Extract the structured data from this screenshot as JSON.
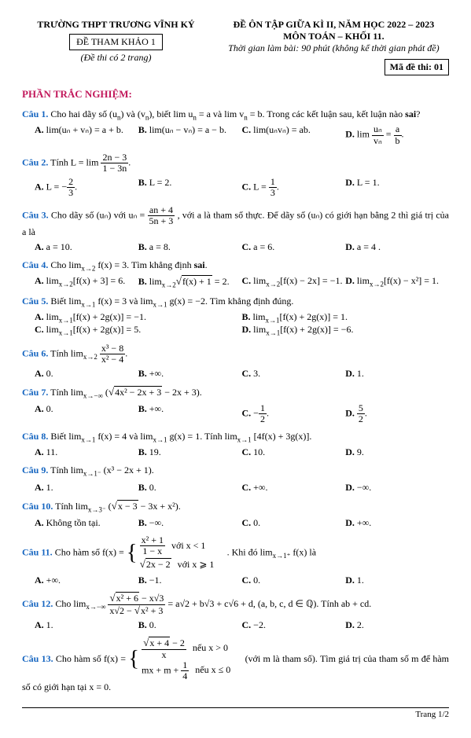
{
  "header": {
    "school": "TRƯỜNG THPT TRƯƠNG VĨNH KÝ",
    "ref_box": "ĐỀ THAM KHẢO 1",
    "pages_note": "(Đề thi có 2 trang)",
    "title": "ĐỀ ÔN TẬP GIỮA KÌ II, NĂM HỌC 2022 – 2023",
    "subject": "MÔN TOÁN – KHỐI 11.",
    "time": "Thời gian làm bài: 90 phút (không kể thời gian phát đề)",
    "exam_code": "Mã đề thi: 01"
  },
  "section_title": "PHẦN TRẮC NGHIỆM:",
  "footer": "Trang 1/2",
  "questions": {
    "q1": {
      "num": "Câu 1.",
      "text_a": "Cho hai dãy số (u",
      "text_b": ") và (v",
      "text_c": "), biết lim u",
      "text_d": " = a và lim v",
      "text_e": " = b. Trong các kết luận sau, kết luận nào ",
      "sai": "sai",
      "qmark": "?",
      "optA": "lim(uₙ + vₙ) = a + b.",
      "optB": "lim(uₙ − vₙ) = a − b.",
      "optC": "lim(uₙvₙ) = ab.",
      "optD_pre": "lim ",
      "optD_num": "uₙ",
      "optD_den": "vₙ",
      "optD_post_num": "a",
      "optD_post_den": "b",
      "dot": "."
    },
    "q2": {
      "num": "Câu 2.",
      "text": "Tính L = lim ",
      "frac_n": "2n − 3",
      "frac_d": "1 − 3n",
      "optA_pre": "L = −",
      "optA_n": "2",
      "optA_d": "3",
      "optB": "L = 2.",
      "optC_pre": "L = ",
      "optC_n": "1",
      "optC_d": "3",
      "optD": "L = 1."
    },
    "q3": {
      "num": "Câu 3.",
      "text_a": "Cho dãy số (uₙ) với uₙ = ",
      "frac_n": "an + 4",
      "frac_d": "5n + 3",
      "text_b": ", với a là tham số thực. Để dãy số (uₙ) có giới hạn bằng 2 thì giá trị của a là",
      "optA": "a = 10.",
      "optB": "a = 8.",
      "optC": "a = 6.",
      "optD": "a = 4 ."
    },
    "q4": {
      "num": "Câu 4.",
      "text_a": "Cho ",
      "lim_sub": "x→2",
      "text_b": " f(x) = 3. Tìm khẳng định ",
      "sai": "sai",
      "optA_lim": "x→2",
      "optA": "[f(x) + 3] = 6.",
      "optB_lim": "x→2",
      "optB_rad": "f(x) + 1",
      "optB_post": " = 2.",
      "optC_lim": "x→2",
      "optC": "[f(x) − 2x] = −1.",
      "optD_lim": "x→2",
      "optD": "[f(x) − x²] = 1."
    },
    "q5": {
      "num": "Câu 5.",
      "text": "Biết lim f(x) = 3 và lim g(x) = −2. Tìm khẳng định đúng.",
      "lim_sub": "x→1",
      "optA": "[f(x) + 2g(x)] = −1.",
      "optB": "[f(x) + 2g(x)] = 1.",
      "optC": "[f(x) + 2g(x)] = 5.",
      "optD": "[f(x) + 2g(x)] = −6."
    },
    "q6": {
      "num": "Câu 6.",
      "text": "Tính ",
      "lim_sub": "x→2",
      "frac_n": "x³ − 8",
      "frac_d": "x² − 4",
      "optA": "0.",
      "optB": "+∞.",
      "optC": "3.",
      "optD": "1."
    },
    "q7": {
      "num": "Câu 7.",
      "text": "Tính ",
      "lim_sub": "x→−∞",
      "rad": "4x² − 2x + 3",
      "post": " − 2x + 3",
      "optA": "0.",
      "optB": "+∞.",
      "optC_pre": "−",
      "optC_n": "1",
      "optC_d": "2",
      "optD_n": "5",
      "optD_d": "2"
    },
    "q8": {
      "num": "Câu 8.",
      "text_a": "Biết lim f(x) = 4 và lim g(x) = 1. Tính lim [4f(x) + 3g(x)].",
      "lim_sub": "x→1",
      "optA": "11.",
      "optB": "19.",
      "optC": "10.",
      "optD": "9."
    },
    "q9": {
      "num": "Câu 9.",
      "text": "Tính ",
      "lim_sub": "x→1⁻",
      "expr": "(x³ − 2x + 1).",
      "optA": "1.",
      "optB": "0.",
      "optC": "+∞.",
      "optD": "−∞."
    },
    "q10": {
      "num": "Câu 10.",
      "text": "Tính ",
      "lim_sub": "x→3⁻",
      "rad": "x − 3",
      "post": " − 3x + x²).",
      "optA": "Không tồn tại.",
      "optB": "−∞.",
      "optC": "0.",
      "optD": "+∞."
    },
    "q11": {
      "num": "Câu 11.",
      "text": "Cho hàm số f(x) = ",
      "row1_n": "x² + 1",
      "row1_d": "1 − x",
      "row1_cond": "với x < 1",
      "row2_rad": "2x − 2",
      "row2_cond": "với x ⩾ 1",
      "post": ". Khi đó ",
      "lim_sub": "x→1⁺",
      "post2": " f(x) là",
      "optA": "+∞.",
      "optB": "−1.",
      "optC": "0.",
      "optD": "1."
    },
    "q12": {
      "num": "Câu 12.",
      "text": "Cho ",
      "lim_sub": "x→−∞",
      "frac_n_rad": "x² + 6",
      "frac_n_post": " − x√3",
      "frac_d_pre": "x√2 − ",
      "frac_d_rad": "x² + 3",
      "post": " = a√2 + b√3 + c√6 + d, (a, b, c, d ∈ ℚ). Tính ab + cd.",
      "optA": "1.",
      "optB": "0.",
      "optC": "−2.",
      "optD": "2."
    },
    "q13": {
      "num": "Câu 13.",
      "text": "Cho hàm số f(x) = ",
      "row1_rad": "x + 4",
      "row1_post": " − 2",
      "row1_den": "x",
      "row1_cond": "nếu x > 0",
      "row2": "mx + m + ",
      "row2_n": "1",
      "row2_d": "4",
      "row2_cond": "nếu x ≤ 0",
      "post": " (với m là tham số). Tìm giá trị của tham số m để hàm số có giới hạn tại x = 0."
    }
  }
}
